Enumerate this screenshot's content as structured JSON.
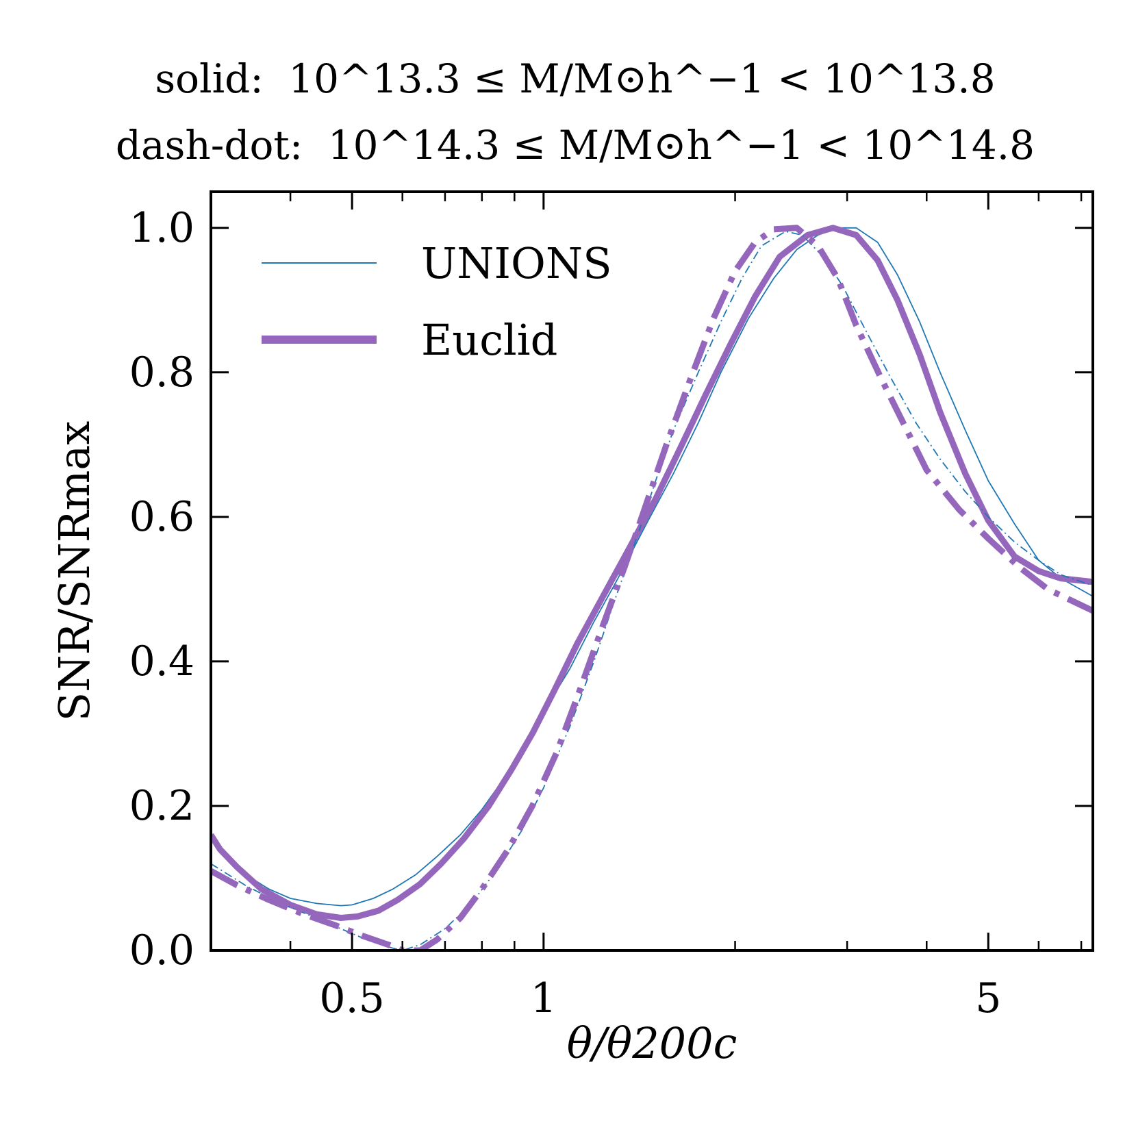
{
  "title": {
    "line1_prefix": "solid:",
    "line1_expr": "10^13.3 ≤ M/M⊙h^−1 < 10^13.8",
    "line2_prefix": "dash-dot:",
    "line2_expr": "10^14.3 ≤ M/M⊙h^−1 < 10^14.8"
  },
  "colors": {
    "unions": "#1f77b4",
    "euclid": "#9467bd",
    "axes": "#000000"
  },
  "chart_data": {
    "type": "line",
    "xscale": "log",
    "xlim": [
      0.3,
      7.3
    ],
    "ylim": [
      0,
      1.05
    ],
    "xlabel": "θ/θ200c",
    "ylabel": "SNR/SNRmax",
    "xticks": [
      0.5,
      1,
      5
    ],
    "xtick_labels": [
      "0.5",
      "1",
      "5"
    ],
    "yticks": [
      0.0,
      0.2,
      0.4,
      0.6,
      0.8,
      1.0
    ],
    "ytick_labels": [
      "0.0",
      "0.2",
      "0.4",
      "0.6",
      "0.8",
      "1.0"
    ],
    "legend": {
      "placement": "top-left",
      "entries": [
        {
          "label": "UNIONS",
          "color": "#1f77b4",
          "style": "thin"
        },
        {
          "label": "Euclid",
          "color": "#9467bd",
          "style": "thick"
        }
      ]
    },
    "series": [
      {
        "name": "UNIONS",
        "mass_bin": "solid",
        "color": "#1f77b4",
        "points": [
          [
            0.3,
            0.155
          ],
          [
            0.32,
            0.128
          ],
          [
            0.34,
            0.105
          ],
          [
            0.37,
            0.085
          ],
          [
            0.4,
            0.072
          ],
          [
            0.44,
            0.065
          ],
          [
            0.48,
            0.062
          ],
          [
            0.5,
            0.063
          ],
          [
            0.54,
            0.072
          ],
          [
            0.58,
            0.085
          ],
          [
            0.63,
            0.105
          ],
          [
            0.68,
            0.13
          ],
          [
            0.74,
            0.16
          ],
          [
            0.8,
            0.195
          ],
          [
            0.87,
            0.24
          ],
          [
            0.94,
            0.29
          ],
          [
            1.0,
            0.33
          ],
          [
            1.1,
            0.39
          ],
          [
            1.2,
            0.455
          ],
          [
            1.3,
            0.51
          ],
          [
            1.45,
            0.59
          ],
          [
            1.6,
            0.66
          ],
          [
            1.75,
            0.73
          ],
          [
            1.9,
            0.8
          ],
          [
            2.1,
            0.875
          ],
          [
            2.3,
            0.93
          ],
          [
            2.5,
            0.97
          ],
          [
            2.7,
            0.99
          ],
          [
            2.9,
            1.0
          ],
          [
            3.1,
            1.0
          ],
          [
            3.35,
            0.98
          ],
          [
            3.6,
            0.935
          ],
          [
            3.9,
            0.87
          ],
          [
            4.2,
            0.8
          ],
          [
            4.6,
            0.72
          ],
          [
            5.0,
            0.65
          ],
          [
            5.5,
            0.59
          ],
          [
            6.0,
            0.54
          ],
          [
            6.5,
            0.515
          ],
          [
            7.3,
            0.49
          ]
        ]
      },
      {
        "name": "Euclid",
        "mass_bin": "solid",
        "color": "#9467bd",
        "points": [
          [
            0.3,
            0.16
          ],
          [
            0.31,
            0.14
          ],
          [
            0.33,
            0.115
          ],
          [
            0.36,
            0.085
          ],
          [
            0.4,
            0.063
          ],
          [
            0.44,
            0.05
          ],
          [
            0.48,
            0.045
          ],
          [
            0.51,
            0.047
          ],
          [
            0.55,
            0.055
          ],
          [
            0.59,
            0.07
          ],
          [
            0.64,
            0.092
          ],
          [
            0.69,
            0.12
          ],
          [
            0.75,
            0.155
          ],
          [
            0.82,
            0.2
          ],
          [
            0.89,
            0.25
          ],
          [
            0.96,
            0.3
          ],
          [
            1.04,
            0.36
          ],
          [
            1.13,
            0.425
          ],
          [
            1.24,
            0.49
          ],
          [
            1.37,
            0.56
          ],
          [
            1.5,
            0.625
          ],
          [
            1.65,
            0.7
          ],
          [
            1.8,
            0.77
          ],
          [
            1.97,
            0.84
          ],
          [
            2.15,
            0.905
          ],
          [
            2.35,
            0.96
          ],
          [
            2.6,
            0.99
          ],
          [
            2.85,
            1.0
          ],
          [
            3.1,
            0.99
          ],
          [
            3.35,
            0.955
          ],
          [
            3.6,
            0.9
          ],
          [
            3.9,
            0.825
          ],
          [
            4.2,
            0.745
          ],
          [
            4.6,
            0.66
          ],
          [
            5.0,
            0.595
          ],
          [
            5.5,
            0.545
          ],
          [
            6.0,
            0.525
          ],
          [
            6.5,
            0.515
          ],
          [
            7.3,
            0.51
          ]
        ]
      },
      {
        "name": "UNIONS",
        "mass_bin": "dash-dot",
        "color": "#1f77b4",
        "points": [
          [
            0.3,
            0.12
          ],
          [
            0.34,
            0.09
          ],
          [
            0.38,
            0.068
          ],
          [
            0.43,
            0.048
          ],
          [
            0.48,
            0.03
          ],
          [
            0.53,
            0.014
          ],
          [
            0.58,
            0.003
          ],
          [
            0.6,
            0.0
          ],
          [
            0.64,
            0.008
          ],
          [
            0.7,
            0.03
          ],
          [
            0.77,
            0.065
          ],
          [
            0.85,
            0.115
          ],
          [
            0.93,
            0.17
          ],
          [
            1.0,
            0.225
          ],
          [
            1.1,
            0.31
          ],
          [
            1.2,
            0.4
          ],
          [
            1.3,
            0.49
          ],
          [
            1.4,
            0.57
          ],
          [
            1.5,
            0.65
          ],
          [
            1.6,
            0.72
          ],
          [
            1.75,
            0.8
          ],
          [
            1.9,
            0.87
          ],
          [
            2.05,
            0.93
          ],
          [
            2.2,
            0.975
          ],
          [
            2.4,
            0.995
          ],
          [
            2.55,
            0.99
          ],
          [
            2.75,
            0.96
          ],
          [
            2.95,
            0.92
          ],
          [
            3.2,
            0.86
          ],
          [
            3.5,
            0.795
          ],
          [
            3.85,
            0.73
          ],
          [
            4.2,
            0.68
          ],
          [
            4.6,
            0.635
          ],
          [
            5.0,
            0.6
          ],
          [
            5.5,
            0.565
          ],
          [
            6.0,
            0.54
          ],
          [
            6.5,
            0.52
          ],
          [
            7.3,
            0.505
          ]
        ]
      },
      {
        "name": "Euclid",
        "mass_bin": "dash-dot",
        "color": "#9467bd",
        "points": [
          [
            0.3,
            0.11
          ],
          [
            0.33,
            0.09
          ],
          [
            0.37,
            0.07
          ],
          [
            0.42,
            0.05
          ],
          [
            0.47,
            0.035
          ],
          [
            0.52,
            0.02
          ],
          [
            0.57,
            0.008
          ],
          [
            0.6,
            0.0
          ],
          [
            0.64,
            0.0
          ],
          [
            0.68,
            0.015
          ],
          [
            0.74,
            0.045
          ],
          [
            0.8,
            0.085
          ],
          [
            0.88,
            0.14
          ],
          [
            0.96,
            0.2
          ],
          [
            1.05,
            0.275
          ],
          [
            1.14,
            0.36
          ],
          [
            1.24,
            0.45
          ],
          [
            1.34,
            0.53
          ],
          [
            1.44,
            0.61
          ],
          [
            1.56,
            0.7
          ],
          [
            1.7,
            0.79
          ],
          [
            1.85,
            0.875
          ],
          [
            2.0,
            0.94
          ],
          [
            2.15,
            0.98
          ],
          [
            2.3,
            0.998
          ],
          [
            2.5,
            1.0
          ],
          [
            2.7,
            0.975
          ],
          [
            2.9,
            0.93
          ],
          [
            3.1,
            0.865
          ],
          [
            3.4,
            0.79
          ],
          [
            3.7,
            0.725
          ],
          [
            4.0,
            0.665
          ],
          [
            4.5,
            0.61
          ],
          [
            5.0,
            0.57
          ],
          [
            5.6,
            0.53
          ],
          [
            6.2,
            0.5
          ],
          [
            7.3,
            0.47
          ]
        ]
      }
    ]
  }
}
